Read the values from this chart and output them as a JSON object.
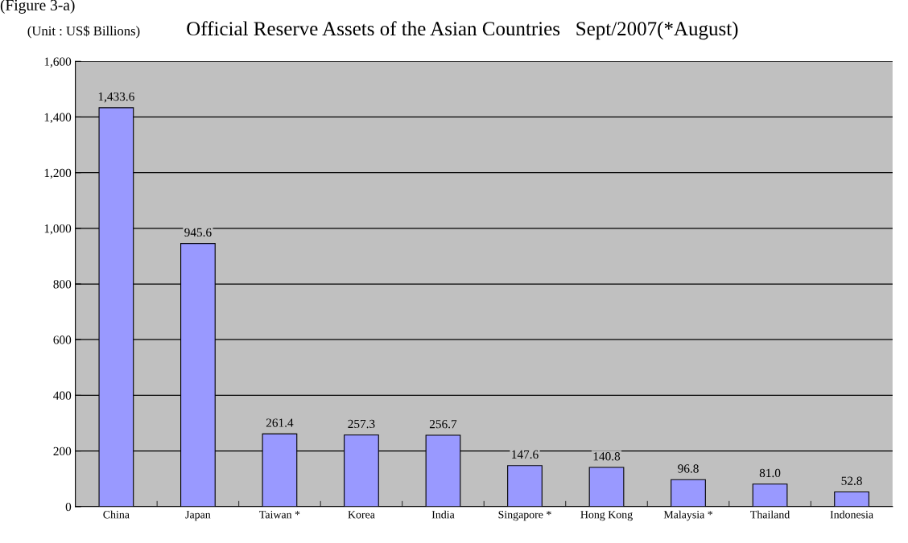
{
  "chart_data": {
    "type": "bar",
    "title": "Official Reserve Assets of the Asian Countries   Sept/2007(*August)",
    "ylabel": "(Unit : US$ Billions)",
    "annotations": [
      "(Figure 3-a)"
    ],
    "categories": [
      "China",
      "Japan",
      "Taiwan *",
      "Korea",
      "India",
      "Singapore *",
      "Hong Kong",
      "Malaysia *",
      "Thailand",
      "Indonesia"
    ],
    "values": [
      1433.6,
      945.6,
      261.4,
      257.3,
      256.7,
      147.6,
      140.8,
      96.8,
      81.0,
      52.8
    ],
    "value_labels": [
      "1,433.6",
      "945.6",
      "261.4",
      "257.3",
      "256.7",
      "147.6",
      "140.8",
      "96.8",
      "81.0",
      "52.8"
    ],
    "color": "#9999ff",
    "ylim": [
      0,
      1600
    ],
    "yticks": [
      {
        "value": 0,
        "label": "0"
      },
      {
        "value": 200,
        "label": "200"
      },
      {
        "value": 400,
        "label": "400"
      },
      {
        "value": 600,
        "label": "600"
      },
      {
        "value": 800,
        "label": "800"
      },
      {
        "value": 1000,
        "label": "1,000"
      },
      {
        "value": 1200,
        "label": "1,200"
      },
      {
        "value": 1400,
        "label": "1,400"
      },
      {
        "value": 1600,
        "label": "1,600"
      }
    ],
    "grid": "y",
    "legend": false
  }
}
